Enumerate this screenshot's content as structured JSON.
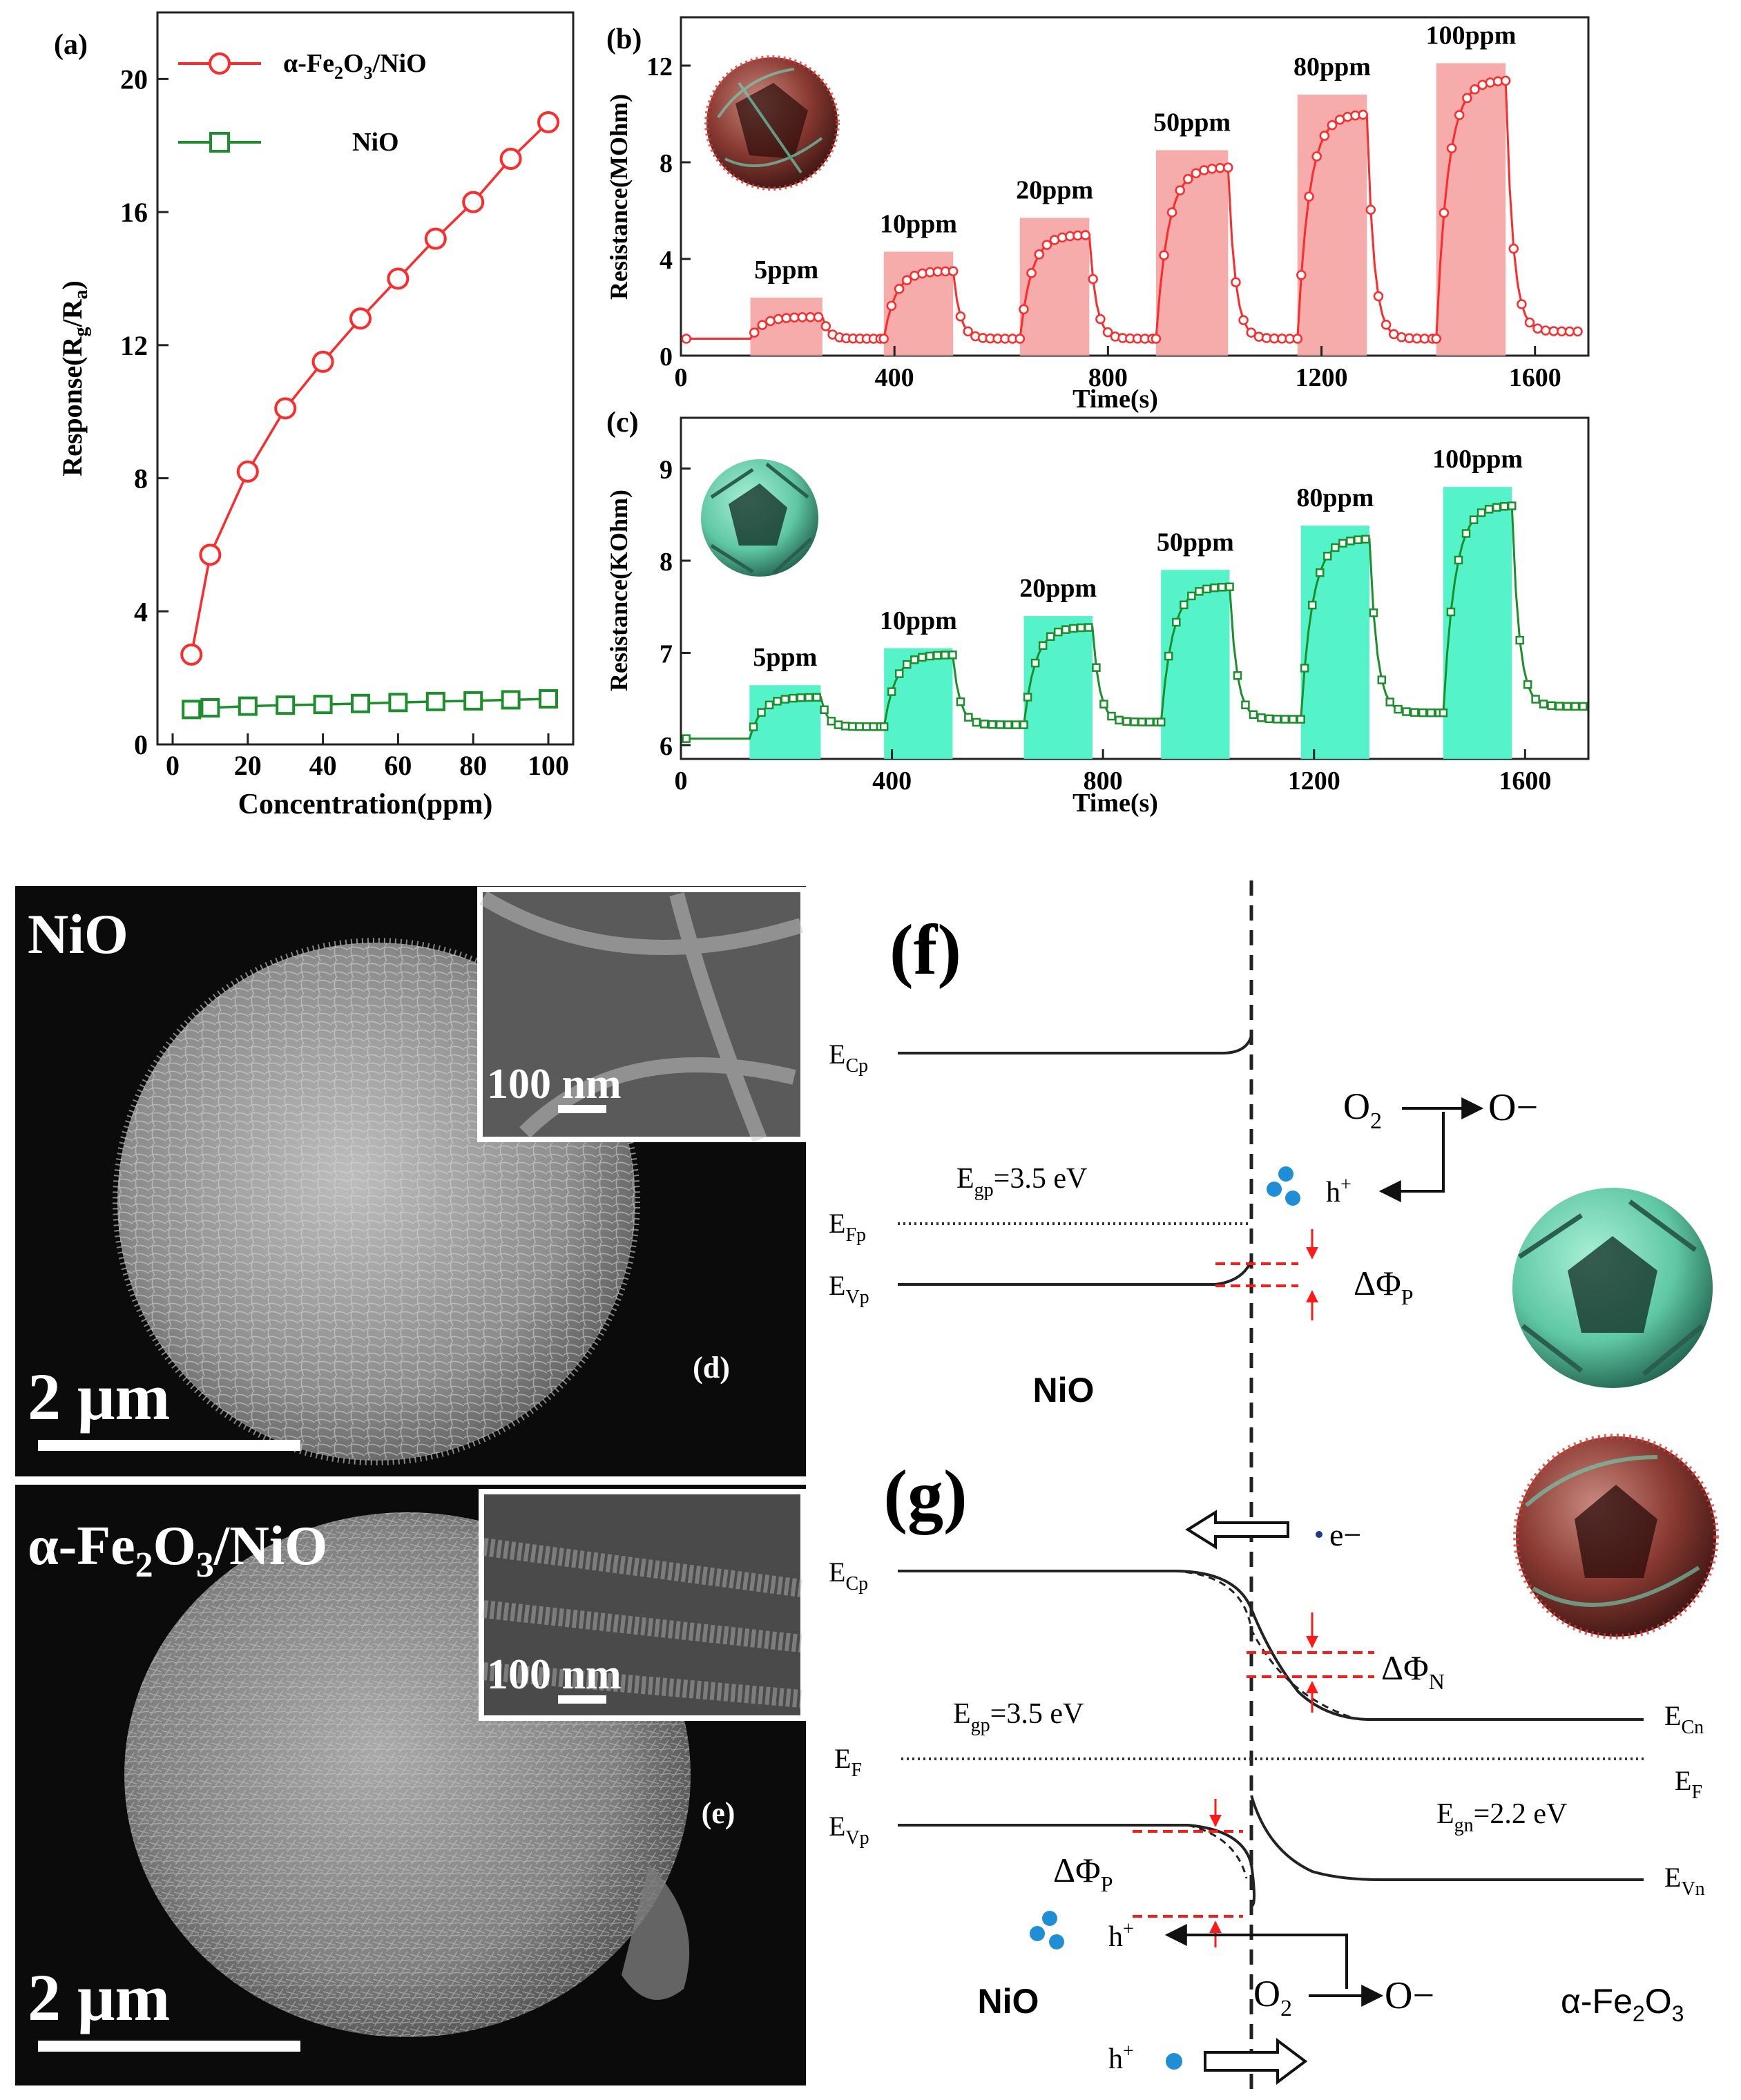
{
  "colors": {
    "red": "#ff2a2a",
    "green": "#1a8f2a",
    "red_fill": "#f6a3a3",
    "cyan_fill": "#43f2c4",
    "sem_bg": "#0b0b0b",
    "dash_red": "#ff1a1a",
    "dot_blue": "#1e8fd6"
  },
  "chart_data": [
    {
      "id": "a",
      "type": "line",
      "panel_label": "(a)",
      "xlabel": "Concentration(ppm)",
      "ylabel": "Response(Rg/Ra)",
      "xlim": [
        0,
        105
      ],
      "ylim": [
        0,
        22
      ],
      "xticks": [
        "0",
        "20",
        "40",
        "60",
        "80",
        "100"
      ],
      "yticks": [
        "0",
        "4",
        "8",
        "12",
        "16",
        "20"
      ],
      "series": [
        {
          "name": "α-Fe2O3/NiO",
          "marker": "circle",
          "x": [
            5,
            10,
            20,
            30,
            40,
            50,
            60,
            70,
            80,
            90,
            100
          ],
          "values": [
            2.7,
            5.7,
            8.2,
            10.1,
            11.5,
            12.8,
            14.0,
            15.2,
            16.3,
            17.6,
            18.7
          ]
        },
        {
          "name": "NiO",
          "marker": "square",
          "x": [
            5,
            10,
            20,
            30,
            40,
            50,
            60,
            70,
            80,
            90,
            100
          ],
          "values": [
            1.05,
            1.1,
            1.15,
            1.18,
            1.2,
            1.23,
            1.26,
            1.29,
            1.31,
            1.34,
            1.37
          ]
        }
      ]
    },
    {
      "id": "b",
      "type": "line",
      "panel_label": "(b)",
      "xlabel": "Time(s)",
      "ylabel": "Resistance(MOhm)",
      "xlim": [
        0,
        1700
      ],
      "ylim": [
        0,
        14
      ],
      "xticks": [
        "0",
        "400",
        "800",
        "1200",
        "1600"
      ],
      "yticks": [
        "0",
        "4",
        "8",
        "12"
      ],
      "baseline": 0.7,
      "pulses": [
        {
          "label": "5ppm",
          "on": 130,
          "off": 265,
          "peak": 1.6,
          "box_top": 2.4
        },
        {
          "label": "10ppm",
          "on": 380,
          "off": 510,
          "peak": 3.5,
          "box_top": 4.3
        },
        {
          "label": "20ppm",
          "on": 635,
          "off": 765,
          "peak": 5.0,
          "box_top": 5.7
        },
        {
          "label": "50ppm",
          "on": 890,
          "off": 1025,
          "peak": 7.8,
          "box_top": 8.5
        },
        {
          "label": "80ppm",
          "on": 1155,
          "off": 1285,
          "peak": 10.0,
          "box_top": 10.8
        },
        {
          "label": "100ppm",
          "on": 1415,
          "off": 1545,
          "peak": 11.4,
          "box_top": 12.1
        }
      ],
      "end_time": 1680,
      "end_value": 1.0
    },
    {
      "id": "c",
      "type": "line",
      "panel_label": "(c)",
      "xlabel": "Time(s)",
      "ylabel": "Resistance(KOhm)",
      "xlim": [
        0,
        1720
      ],
      "ylim": [
        5.85,
        9.55
      ],
      "xticks": [
        "0",
        "400",
        "800",
        "1200",
        "1600"
      ],
      "yticks": [
        "6",
        "7",
        "8",
        "9"
      ],
      "baseline": 6.07,
      "pulses": [
        {
          "label": "5ppm",
          "on": 130,
          "off": 265,
          "peak": 6.52,
          "recover": 6.2,
          "box_top": 6.65
        },
        {
          "label": "10ppm",
          "on": 385,
          "off": 515,
          "peak": 6.98,
          "recover": 6.22,
          "box_top": 7.05
        },
        {
          "label": "20ppm",
          "on": 650,
          "off": 780,
          "peak": 7.28,
          "recover": 6.25,
          "box_top": 7.4
        },
        {
          "label": "50ppm",
          "on": 910,
          "off": 1040,
          "peak": 7.72,
          "recover": 6.28,
          "box_top": 7.9
        },
        {
          "label": "80ppm",
          "on": 1175,
          "off": 1305,
          "peak": 8.24,
          "recover": 6.35,
          "box_top": 8.38
        },
        {
          "label": "100ppm",
          "on": 1445,
          "off": 1575,
          "peak": 8.6,
          "recover": 6.42,
          "box_top": 8.8
        }
      ],
      "end_time": 1710
    }
  ],
  "sem": {
    "d_title": "NiO",
    "d_label": "(d)",
    "d_scale": "2 μm",
    "d_inset_scale": "100 nm",
    "e_title": "α-Fe2O3/NiO",
    "e_label": "(e)",
    "e_scale": "2 μm",
    "e_inset_scale": "100 nm"
  },
  "band_f": {
    "panel_label": "(f)",
    "ecp": "ECp",
    "efp": "EFp",
    "evp": "EVp",
    "egp": "Egp=3.5 eV",
    "o2": "O2",
    "o_minus": "O−",
    "h_plus": "h+",
    "delta_phi": "ΔΦP",
    "material": "NiO"
  },
  "band_g": {
    "panel_label": "(g)",
    "ecp": "ECp",
    "ef_left": "EF",
    "evp": "EVp",
    "egp": "Egp=3.5 eV",
    "egn": "Egn=2.2 eV",
    "ecn": "ECn",
    "ef_right": "EF",
    "evn": "EVn",
    "electron": "e−",
    "delta_phi_n": "ΔΦN",
    "delta_phi_p": "ΔΦP",
    "h_plus": "h+",
    "h_plus_bottom": "h+",
    "o2": "O2",
    "o_minus": "O−",
    "material_left": "NiO",
    "material_right": "α-Fe2O3"
  }
}
